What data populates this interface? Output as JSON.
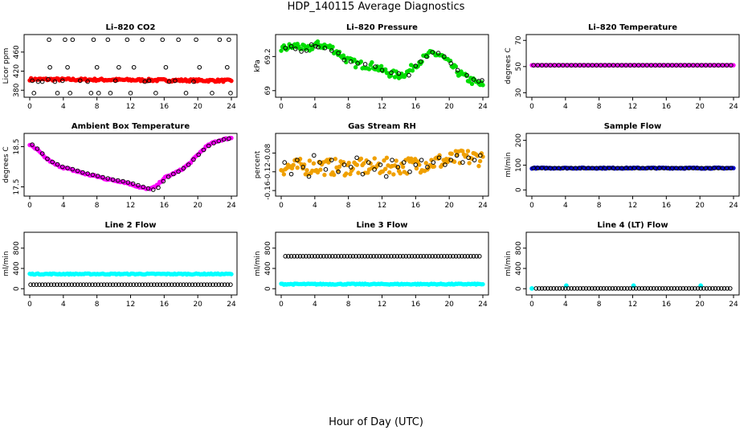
{
  "page": {
    "title": "HDP_140115  Average Diagnostics",
    "footer": "Hour of Day (UTC)"
  },
  "chart_data": [
    {
      "type": "scatter",
      "title": "Li–820 CO2",
      "ylabel": "Licor ppm",
      "xlim": [
        0,
        24
      ],
      "ylim": [
        372,
        490
      ],
      "xticks": [
        0,
        4,
        8,
        12,
        16,
        20,
        24
      ],
      "yticks": [
        380,
        420,
        460
      ],
      "series": [
        {
          "color": "#ff0000",
          "band": {
            "x0": 0,
            "x1": 24,
            "y0": 403,
            "y1": 400,
            "spread": 2.5
          }
        },
        {
          "color": "#000000",
          "outline": true,
          "x": [
            0.3,
            0.5,
            1.0,
            1.5,
            2.2,
            2.3,
            2.4,
            3.0,
            3.3,
            3.9,
            4.2,
            4.5,
            4.8,
            5.1,
            6.0,
            6.9,
            7.3,
            7.6,
            8.0,
            8.2,
            9.3,
            9.6,
            10.2,
            10.6,
            11.6,
            12.0,
            12.4,
            13.4,
            13.7,
            14.2,
            15.0,
            15.8,
            16.2,
            16.6,
            17.3,
            17.7,
            18.6,
            19.5,
            19.8,
            20.2,
            21.7,
            22.6,
            23.5,
            23.7,
            23.9
          ],
          "y": [
            400,
            374,
            398,
            398,
            403,
            486,
            428,
            398,
            374,
            400,
            486,
            428,
            374,
            486,
            400,
            398,
            374,
            486,
            428,
            374,
            486,
            374,
            400,
            428,
            486,
            374,
            428,
            486,
            398,
            400,
            374,
            486,
            428,
            398,
            400,
            486,
            374,
            398,
            486,
            428,
            374,
            486,
            428,
            486,
            374
          ]
        }
      ]
    },
    {
      "type": "scatter",
      "title": "Li–820 Pressure",
      "ylabel": "kPa",
      "xlim": [
        0,
        24
      ],
      "ylim": [
        68.98,
        69.31
      ],
      "xticks": [
        0,
        4,
        8,
        12,
        16,
        20,
        24
      ],
      "yticks": [
        69.0,
        69.2
      ],
      "series": [
        {
          "color": "#00dd00",
          "band": {
            "x": [
              0,
              1,
              2,
              3,
              4,
              5,
              6,
              7,
              8,
              9,
              10,
              11,
              12,
              13,
              14,
              15,
              16,
              17,
              18,
              19,
              20,
              21,
              22,
              23,
              24
            ],
            "y": [
              69.245,
              69.255,
              69.265,
              69.235,
              69.27,
              69.265,
              69.25,
              69.215,
              69.175,
              69.155,
              69.15,
              69.145,
              69.12,
              69.1,
              69.09,
              69.105,
              69.155,
              69.19,
              69.22,
              69.205,
              69.16,
              69.11,
              69.075,
              69.05,
              69.03
            ],
            "spread": 0.022
          }
        },
        {
          "color": "#000000",
          "outline": true,
          "x": [
            0.5,
            1.2,
            1.7,
            2.4,
            3.0,
            3.6,
            4.1,
            4.4,
            5.2,
            6.0,
            6.8,
            7.5,
            8.3,
            9.1,
            10.0,
            11.2,
            12.0,
            13.1,
            14.0,
            15.2,
            16.0,
            16.6,
            17.3,
            18.0,
            18.7,
            19.4,
            20.2,
            21.0,
            22.1,
            22.9,
            23.5,
            23.9
          ],
          "y": [
            69.25,
            69.26,
            69.245,
            69.23,
            69.235,
            69.27,
            69.26,
            69.255,
            69.25,
            69.235,
            69.22,
            69.18,
            69.17,
            69.16,
            69.155,
            69.14,
            69.12,
            69.105,
            69.1,
            69.09,
            69.145,
            69.17,
            69.2,
            69.225,
            69.22,
            69.2,
            69.16,
            69.12,
            69.09,
            69.065,
            69.055,
            69.06
          ]
        }
      ]
    },
    {
      "type": "scatter",
      "title": "Li–820 Temperature",
      "ylabel": "degrees C",
      "xlim": [
        0,
        24
      ],
      "ylim": [
        29,
        72
      ],
      "xticks": [
        0,
        4,
        8,
        12,
        16,
        20,
        24
      ],
      "yticks": [
        30,
        50,
        70
      ],
      "series": [
        {
          "color": "#ff00ff",
          "band": {
            "x0": 0,
            "x1": 24,
            "y0": 51,
            "y1": 51,
            "spread": 0
          }
        },
        {
          "color": "#000000",
          "outline": true,
          "xstep": 0.5,
          "x0": 0.2,
          "x1": 23.9,
          "yconst": 51
        }
      ]
    },
    {
      "type": "scatter",
      "title": "Ambient Box Temperature",
      "ylabel": "degrees C",
      "xlim": [
        0,
        24
      ],
      "ylim": [
        17.35,
        18.75
      ],
      "xticks": [
        0,
        4,
        8,
        12,
        16,
        20,
        24
      ],
      "yticks": [
        17.5,
        18.5
      ],
      "series": [
        {
          "color": "#ff00ff",
          "band": {
            "x": [
              0,
              1,
              2,
              3,
              4,
              5,
              6,
              7,
              8,
              9,
              10,
              11,
              12,
              13,
              14,
              15,
              16,
              17,
              18,
              19,
              20,
              21,
              22,
              23,
              24
            ],
            "y": [
              18.55,
              18.4,
              18.2,
              18.06,
              17.98,
              17.92,
              17.86,
              17.8,
              17.76,
              17.7,
              17.66,
              17.63,
              17.57,
              17.5,
              17.44,
              17.5,
              17.72,
              17.82,
              17.92,
              18.08,
              18.3,
              18.5,
              18.62,
              18.68,
              18.72
            ],
            "spread": 0.02
          }
        },
        {
          "color": "#000000",
          "outline": true,
          "x": [
            0.3,
            0.9,
            1.5,
            2.1,
            2.7,
            3.3,
            3.9,
            4.5,
            5.1,
            5.7,
            6.3,
            6.9,
            7.5,
            8.1,
            8.7,
            9.3,
            9.9,
            10.5,
            11.1,
            11.7,
            12.3,
            12.9,
            13.5,
            14.1,
            14.7,
            15.3,
            15.9,
            16.5,
            17.1,
            17.7,
            18.3,
            18.9,
            19.5,
            20.1,
            20.7,
            21.3,
            21.9,
            22.5,
            23.1,
            23.7
          ],
          "y": [
            18.55,
            18.45,
            18.33,
            18.2,
            18.12,
            18.06,
            18.0,
            17.97,
            17.94,
            17.9,
            17.86,
            17.83,
            17.8,
            17.77,
            17.74,
            17.71,
            17.68,
            17.66,
            17.64,
            17.61,
            17.58,
            17.54,
            17.5,
            17.46,
            17.43,
            17.48,
            17.64,
            17.75,
            17.82,
            17.88,
            17.96,
            18.05,
            18.18,
            18.3,
            18.42,
            18.52,
            18.59,
            18.64,
            18.68,
            18.7
          ]
        }
      ]
    },
    {
      "type": "scatter",
      "title": "Gas Stream RH",
      "ylabel": "percent",
      "xlim": [
        0,
        24
      ],
      "ylim": [
        -0.165,
        -0.045
      ],
      "xticks": [
        0,
        4,
        8,
        12,
        16,
        20,
        24
      ],
      "yticks": [
        -0.16,
        -0.12,
        -0.08
      ],
      "series": [
        {
          "color": "#f0a000",
          "band": {
            "x": [
              0,
              2,
              4,
              6,
              8,
              10,
              12,
              14,
              16,
              18,
              20,
              22,
              24
            ],
            "y": [
              -0.11,
              -0.11,
              -0.108,
              -0.11,
              -0.11,
              -0.11,
              -0.108,
              -0.108,
              -0.105,
              -0.1,
              -0.095,
              -0.09,
              -0.09
            ],
            "spread": 0.018
          }
        },
        {
          "color": "#000000",
          "outline": true,
          "x": [
            0.4,
            1.2,
            1.9,
            2.6,
            3.3,
            3.9,
            4.6,
            5.3,
            6.0,
            6.8,
            7.5,
            8.3,
            9.0,
            9.7,
            10.4,
            11.1,
            11.8,
            12.5,
            13.2,
            13.9,
            14.6,
            15.3,
            16.0,
            16.7,
            17.4,
            18.1,
            18.8,
            19.5,
            20.2,
            20.9,
            21.6,
            22.3,
            23.0,
            23.7
          ],
          "y": [
            -0.1,
            -0.125,
            -0.095,
            -0.11,
            -0.13,
            -0.085,
            -0.1,
            -0.115,
            -0.095,
            -0.12,
            -0.105,
            -0.11,
            -0.09,
            -0.125,
            -0.1,
            -0.115,
            -0.105,
            -0.13,
            -0.095,
            -0.11,
            -0.1,
            -0.12,
            -0.105,
            -0.095,
            -0.11,
            -0.1,
            -0.09,
            -0.105,
            -0.095,
            -0.085,
            -0.1,
            -0.09,
            -0.095,
            -0.085
          ]
        }
      ]
    },
    {
      "type": "scatter",
      "title": "Sample Flow",
      "ylabel": "ml/min",
      "xlim": [
        0,
        24
      ],
      "ylim": [
        -12,
        215
      ],
      "xticks": [
        0,
        4,
        8,
        12,
        16,
        20,
        24
      ],
      "yticks": [
        0,
        100,
        200
      ],
      "series": [
        {
          "color": "#0000cc",
          "band": {
            "x0": 0,
            "x1": 24,
            "y0": 88,
            "y1": 88,
            "spread": 2
          }
        },
        {
          "color": "#000000",
          "outline": true,
          "xstep": 0.5,
          "x0": 0.2,
          "x1": 23.9,
          "yconst": 88
        }
      ]
    },
    {
      "type": "scatter",
      "title": "Line 2 Flow",
      "ylabel": "ml/min",
      "xlim": [
        0,
        24
      ],
      "ylim": [
        -60,
        1050
      ],
      "xticks": [
        0,
        4,
        8,
        12,
        16,
        20,
        24
      ],
      "yticks": [
        0,
        400,
        800
      ],
      "series": [
        {
          "color": "#00ffff",
          "band": {
            "x0": 0,
            "x1": 24,
            "y0": 290,
            "y1": 290,
            "spread": 10
          }
        },
        {
          "color": "#000000",
          "outline": true,
          "xstep": 0.35,
          "x0": 0.1,
          "x1": 23.9,
          "yconst": 80
        }
      ]
    },
    {
      "type": "scatter",
      "title": "Line 3 Flow",
      "ylabel": "ml/min",
      "xlim": [
        0,
        24
      ],
      "ylim": [
        -60,
        1050
      ],
      "xticks": [
        0,
        4,
        8,
        12,
        16,
        20,
        24
      ],
      "yticks": [
        0,
        400,
        800
      ],
      "series": [
        {
          "color": "#00ffff",
          "band": {
            "x0": 0,
            "x1": 24,
            "y0": 90,
            "y1": 90,
            "spread": 10
          }
        },
        {
          "color": "#000000",
          "outline": true,
          "xstep": 0.35,
          "x0": 0.5,
          "x1": 23.9,
          "yconst": 640
        }
      ]
    },
    {
      "type": "scatter",
      "title": "Line 4 (LT) Flow",
      "ylabel": "ml/min",
      "xlim": [
        0,
        24
      ],
      "ylim": [
        -60,
        1050
      ],
      "xticks": [
        0,
        4,
        8,
        12,
        16,
        20,
        24
      ],
      "yticks": [
        0,
        400,
        800
      ],
      "series": [
        {
          "color": "#00ffff",
          "points": {
            "x": [
              0.0,
              4.1,
              12.1,
              20.1
            ],
            "y": [
              5,
              60,
              60,
              60
            ]
          }
        },
        {
          "color": "#000000",
          "outline": true,
          "xstep": 0.35,
          "x0": 0.5,
          "x1": 23.9,
          "yconst": 5
        }
      ]
    }
  ]
}
